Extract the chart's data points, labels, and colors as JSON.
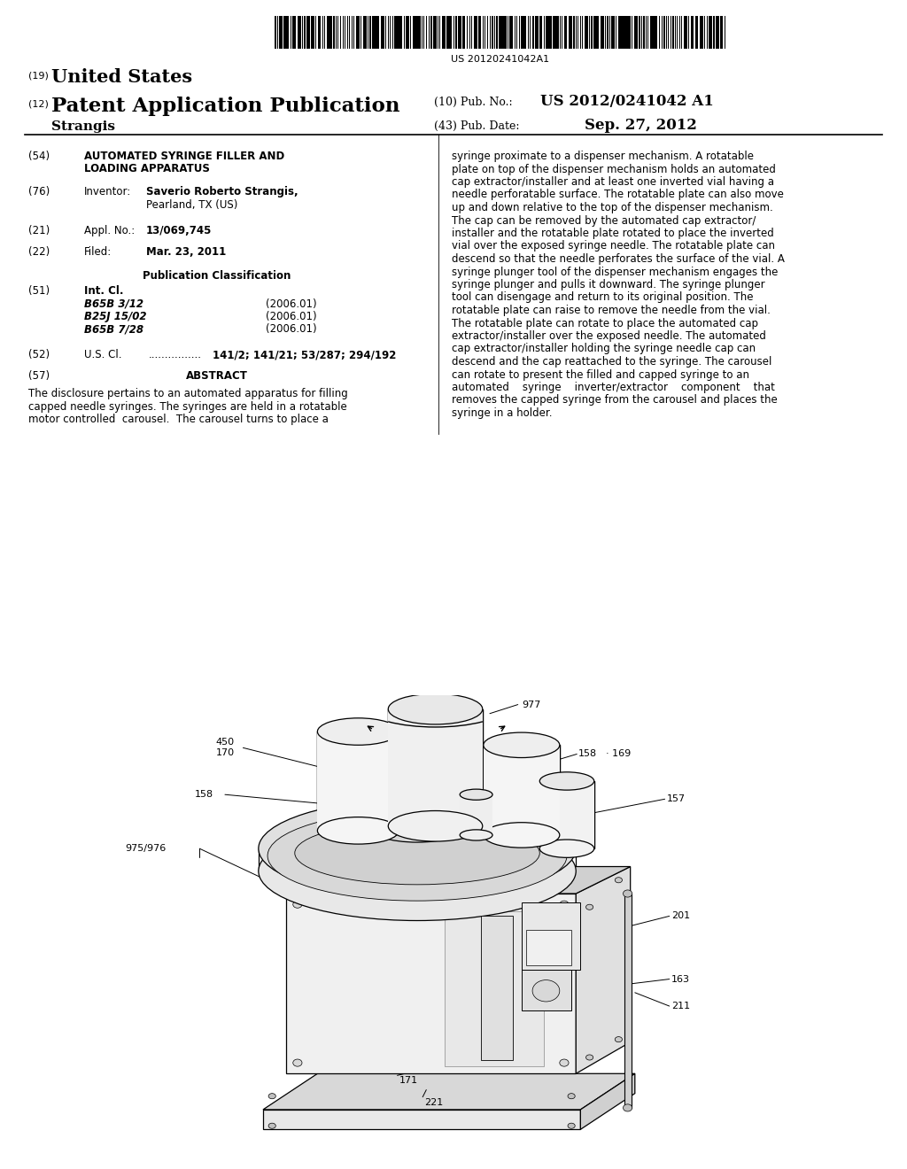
{
  "background_color": "#ffffff",
  "page_width": 10.24,
  "page_height": 13.2,
  "barcode_text": "US 20120241042A1",
  "header": {
    "country_label": "(19)",
    "country": "United States",
    "type_label": "(12)",
    "type": "Patent Application Publication",
    "pub_no_label": "(10) Pub. No.:",
    "pub_no": "US 2012/0241042 A1",
    "inventor_last": "Strangis",
    "date_label": "(43) Pub. Date:",
    "date": "Sep. 27, 2012"
  },
  "left_col": {
    "title_num": "(54)",
    "title_line1": "AUTOMATED SYRINGE FILLER AND",
    "title_line2": "LOADING APPARATUS",
    "inventor_num": "(76)",
    "inventor_label": "Inventor:",
    "inventor_name": "Saverio Roberto Strangis,",
    "inventor_city": "Pearland, TX (US)",
    "appl_num": "(21)",
    "appl_label": "Appl. No.:",
    "appl_value": "13/069,745",
    "filed_num": "(22)",
    "filed_label": "Filed:",
    "filed_value": "Mar. 23, 2011",
    "pub_class_header": "Publication Classification",
    "int_cl_num": "(51)",
    "int_cl_label": "Int. Cl.",
    "classes": [
      [
        "B65B 3/12",
        "(2006.01)"
      ],
      [
        "B25J 15/02",
        "(2006.01)"
      ],
      [
        "B65B 7/28",
        "(2006.01)"
      ]
    ],
    "us_cl_num": "(52)",
    "us_cl_label": "U.S. Cl.",
    "us_cl_dots": "................",
    "us_cl_value": "141/2; 141/21; 53/287; 294/192",
    "abstract_num": "(57)",
    "abstract_label": "ABSTRACT",
    "abstract_text_lines": [
      "The disclosure pertains to an automated apparatus for filling",
      "capped needle syringes. The syringes are held in a rotatable",
      "motor controlled  carousel.  The carousel turns to place a"
    ]
  },
  "right_col_lines": [
    "syringe proximate to a dispenser mechanism. A rotatable",
    "plate on top of the dispenser mechanism holds an automated",
    "cap extractor/installer and at least one inverted vial having a",
    "needle perforatable surface. The rotatable plate can also move",
    "up and down relative to the top of the dispenser mechanism.",
    "The cap can be removed by the automated cap extractor/",
    "installer and the rotatable plate rotated to place the inverted",
    "vial over the exposed syringe needle. The rotatable plate can",
    "descend so that the needle perforates the surface of the vial. A",
    "syringe plunger tool of the dispenser mechanism engages the",
    "syringe plunger and pulls it downward. The syringe plunger",
    "tool can disengage and return to its original position. The",
    "rotatable plate can raise to remove the needle from the vial.",
    "The rotatable plate can rotate to place the automated cap",
    "extractor/installer over the exposed needle. The automated",
    "cap extractor/installer holding the syringe needle cap can",
    "descend and the cap reattached to the syringe. The carousel",
    "can rotate to present the filled and capped syringe to an",
    "automated    syringe    inverter/extractor    component    that",
    "removes the capped syringe from the carousel and places the",
    "syringe in a holder."
  ]
}
